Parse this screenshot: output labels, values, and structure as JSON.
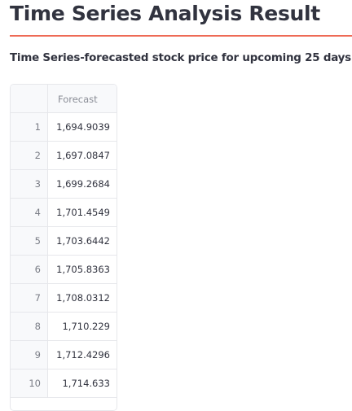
{
  "page": {
    "title": "Time Series Analysis Result",
    "subtitle": "Time Series-forecasted stock price for upcoming 25 days :"
  },
  "colors": {
    "accent_divider": "#ee6a55",
    "text": "#31333f",
    "border": "#e6e7eb",
    "index_bg": "#f8f9fb"
  },
  "table": {
    "columns": [
      "",
      "Forecast"
    ],
    "rows": [
      {
        "index": "1",
        "forecast": "1,694.9039"
      },
      {
        "index": "2",
        "forecast": "1,697.0847"
      },
      {
        "index": "3",
        "forecast": "1,699.2684"
      },
      {
        "index": "4",
        "forecast": "1,701.4549"
      },
      {
        "index": "5",
        "forecast": "1,703.6442"
      },
      {
        "index": "6",
        "forecast": "1,705.8363"
      },
      {
        "index": "7",
        "forecast": "1,708.0312"
      },
      {
        "index": "8",
        "forecast": "1,710.229"
      },
      {
        "index": "9",
        "forecast": "1,712.4296"
      },
      {
        "index": "10",
        "forecast": "1,714.633"
      }
    ]
  }
}
